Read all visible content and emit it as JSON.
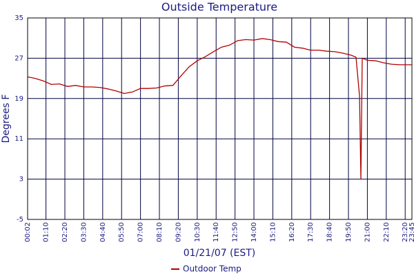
{
  "chart_data": {
    "type": "line",
    "title": "Outside Temperature",
    "x_label": "01/21/07 (EST)",
    "y_label": "Degrees F",
    "x": [
      2,
      30,
      60,
      90,
      120,
      150,
      180,
      210,
      240,
      270,
      300,
      330,
      360,
      390,
      420,
      450,
      480,
      510,
      540,
      570,
      600,
      630,
      660,
      690,
      720,
      750,
      780,
      810,
      840,
      870,
      900,
      930,
      960,
      990,
      1020,
      1050,
      1080,
      1110,
      1140,
      1170,
      1200,
      1218,
      1231,
      1236,
      1241,
      1260,
      1290,
      1320,
      1350,
      1380,
      1410,
      1425
    ],
    "series": [
      {
        "name": "Outdoor Temp",
        "color": "#b00000",
        "values": [
          23.3,
          23.0,
          22.5,
          21.8,
          21.9,
          21.4,
          21.6,
          21.3,
          21.3,
          21.2,
          20.9,
          20.5,
          20.0,
          20.3,
          21.0,
          21.0,
          21.1,
          21.5,
          21.6,
          23.5,
          25.3,
          26.5,
          27.3,
          28.3,
          29.2,
          29.6,
          30.5,
          30.7,
          30.6,
          30.9,
          30.7,
          30.3,
          30.2,
          29.2,
          29.0,
          28.6,
          28.6,
          28.4,
          28.3,
          28.0,
          27.6,
          27.2,
          19.5,
          3,
          27,
          26.6,
          26.5,
          26.1,
          25.8,
          25.7,
          25.7,
          25.7
        ]
      }
    ],
    "xlim": [
      2,
      1425
    ],
    "xticks": [
      {
        "value": 2,
        "label": "00:02"
      },
      {
        "value": 70,
        "label": "01:10"
      },
      {
        "value": 140,
        "label": "02:20"
      },
      {
        "value": 210,
        "label": "03:30"
      },
      {
        "value": 280,
        "label": "04:40"
      },
      {
        "value": 350,
        "label": "05:50"
      },
      {
        "value": 420,
        "label": "07:00"
      },
      {
        "value": 490,
        "label": "08:10"
      },
      {
        "value": 560,
        "label": "09:20"
      },
      {
        "value": 630,
        "label": "10:30"
      },
      {
        "value": 700,
        "label": "11:40"
      },
      {
        "value": 770,
        "label": "12:50"
      },
      {
        "value": 840,
        "label": "14:00"
      },
      {
        "value": 910,
        "label": "15:10"
      },
      {
        "value": 980,
        "label": "16:20"
      },
      {
        "value": 1050,
        "label": "17:30"
      },
      {
        "value": 1120,
        "label": "18:40"
      },
      {
        "value": 1190,
        "label": "19:50"
      },
      {
        "value": 1260,
        "label": "21:00"
      },
      {
        "value": 1330,
        "label": "22:10"
      },
      {
        "value": 1400,
        "label": "23:20"
      },
      {
        "value": 1425,
        "label": "23:45"
      }
    ],
    "ylim": [
      -5,
      35
    ],
    "yticks": [
      -5,
      3,
      11,
      19,
      27,
      35
    ],
    "grid": true
  }
}
